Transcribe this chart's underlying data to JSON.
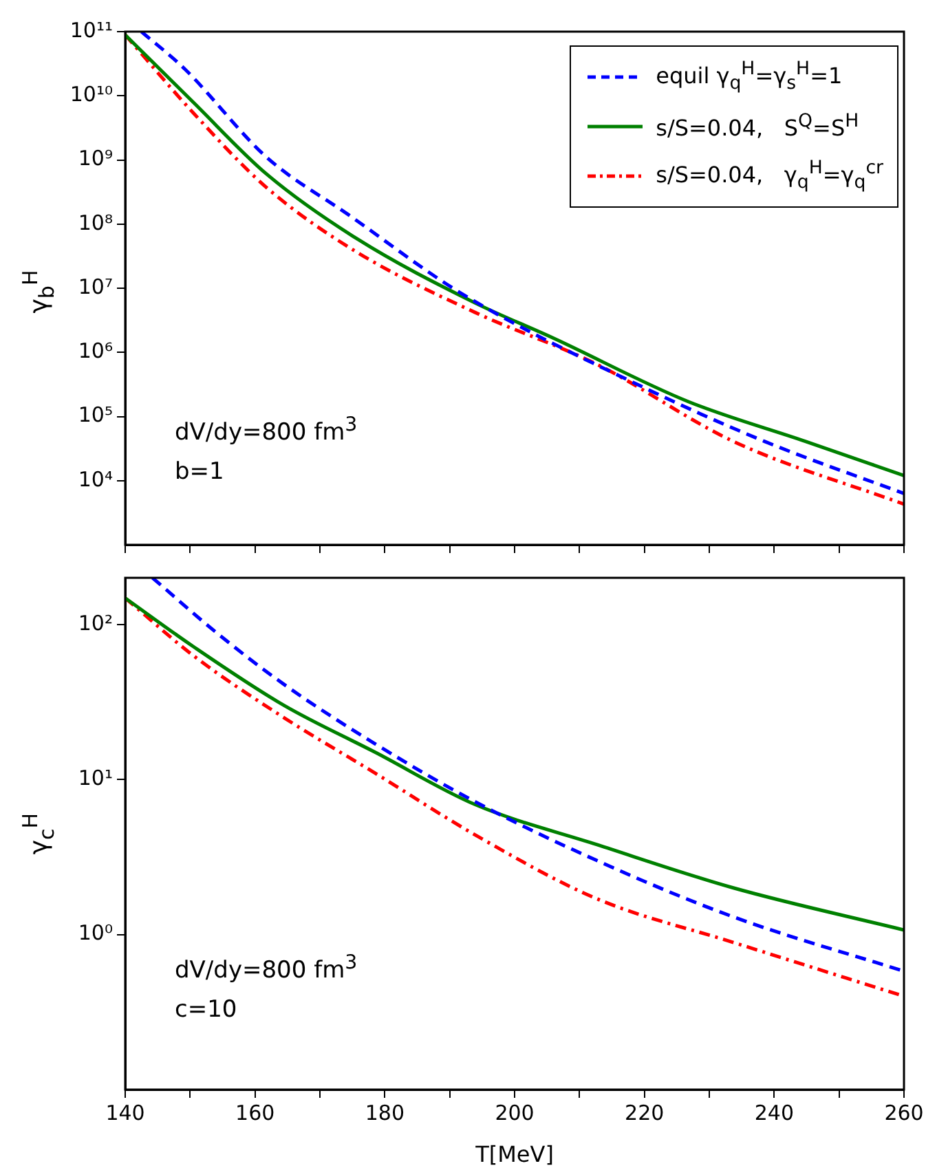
{
  "chart_data": [
    {
      "type": "line",
      "ylabel": "γ$_{b}$$^{H}$",
      "annotations": [
        "dV/dy=800 fm$^{3}$",
        "b=1"
      ],
      "legend": "top right",
      "log": "y",
      "grid": false,
      "tick_labels": "y",
      "marker": "none",
      "xlim": [
        140,
        260
      ],
      "xticks": [
        140,
        {
          "value": 150,
          "label": null
        },
        160,
        {
          "value": 170,
          "label": null
        },
        180,
        {
          "value": 190,
          "label": null
        },
        200,
        {
          "value": 210,
          "label": null
        },
        220,
        {
          "value": 230,
          "label": null
        },
        240,
        {
          "value": 250,
          "label": null
        },
        260
      ],
      "ylim": [
        1000,
        100000000000
      ],
      "yticks": [
        {
          "value": 10000,
          "label": "10⁴"
        },
        {
          "value": 100000,
          "label": "10⁵"
        },
        {
          "value": 1000000,
          "label": "10⁶"
        },
        {
          "value": 10000000,
          "label": "10⁷"
        },
        {
          "value": 100000000,
          "label": "10⁸"
        },
        {
          "value": 1000000000,
          "label": "10⁹"
        },
        {
          "value": 10000000000,
          "label": "10¹⁰"
        },
        {
          "value": 100000000000,
          "label": "10¹¹"
        }
      ],
      "series": [
        {
          "name": "equil γ$_{q}$$^{H}$=γ$_{s}$$^{H}$=1",
          "color": "#0000ff",
          "line_style": "dashed",
          "x": [
            142.5,
            149.2,
            161.8,
            174.4,
            191.8,
            219.7,
            238.5,
            260
          ],
          "values": [
            100000000000,
            26000000000,
            1100000000,
            140000000,
            8300000,
            290000,
            41000,
            6300
          ]
        },
        {
          "name": "s/S=0.04,   S$^{Q}$=S$^{H}$",
          "color": "#008000",
          "line_style": "solid",
          "x": [
            140,
            150.5,
            161.8,
            175.6,
            193.9,
            205.8,
            226.8,
            244.8,
            260
          ],
          "values": [
            89000000000,
            7900000000,
            600000000,
            60000000,
            5900000,
            1700000,
            170000,
            41000,
            12000
          ]
        },
        {
          "name": "s/S=0.04,   γ$_{q}$$^{H}$=γ$_{q}$$^{cr}$",
          "color": "#ff0000",
          "line_style": "dashdot",
          "x": [
            140,
            150.5,
            161.8,
            175.6,
            193.9,
            212.7,
            233.7,
            260
          ],
          "values": [
            89000000000,
            5400000000,
            370000000,
            37000000,
            4200000,
            650000,
            41000,
            4300
          ]
        }
      ]
    },
    {
      "type": "line",
      "xlabel": "T[MeV]",
      "ylabel": "γ$_{c}$$^{H}$",
      "annotations": [
        "dV/dy=800 fm$^{3}$",
        "c=10"
      ],
      "log": "y",
      "grid": false,
      "marker": "none",
      "xlim": [
        140,
        260
      ],
      "xticks": [
        140,
        {
          "value": 150,
          "label": null
        },
        160,
        {
          "value": 170,
          "label": null
        },
        180,
        {
          "value": 190,
          "label": null
        },
        200,
        {
          "value": 210,
          "label": null
        },
        220,
        {
          "value": 230,
          "label": null
        },
        240,
        {
          "value": 250,
          "label": null
        },
        260
      ],
      "ylim": [
        0.1,
        200
      ],
      "yticks": [
        {
          "value": 1,
          "label": "10⁰"
        },
        {
          "value": 10,
          "label": "10¹"
        },
        {
          "value": 100,
          "label": "10²"
        }
      ],
      "series": [
        {
          "color": "#0000ff",
          "line_style": "dashed",
          "x": [
            144.2,
            154,
            164.5,
            178.5,
            193.9,
            212.7,
            233.7,
            260
          ],
          "values": [
            200,
            89,
            41,
            17,
            7.2,
            3.0,
            1.3,
            0.58
          ]
        },
        {
          "color": "#008000",
          "line_style": "solid",
          "x": [
            140,
            150.5,
            164.5,
            178.5,
            193.9,
            212.7,
            233.7,
            260
          ],
          "values": [
            148,
            72,
            30,
            15,
            6.9,
            3.8,
            2.0,
            1.07
          ]
        },
        {
          "color": "#ff0000",
          "line_style": "dashdot",
          "x": [
            140,
            150.5,
            164.5,
            178.5,
            193.9,
            212.7,
            233.7,
            260
          ],
          "values": [
            148,
            63,
            25,
            11,
            4.4,
            1.7,
            0.89,
            0.4
          ]
        }
      ]
    }
  ]
}
